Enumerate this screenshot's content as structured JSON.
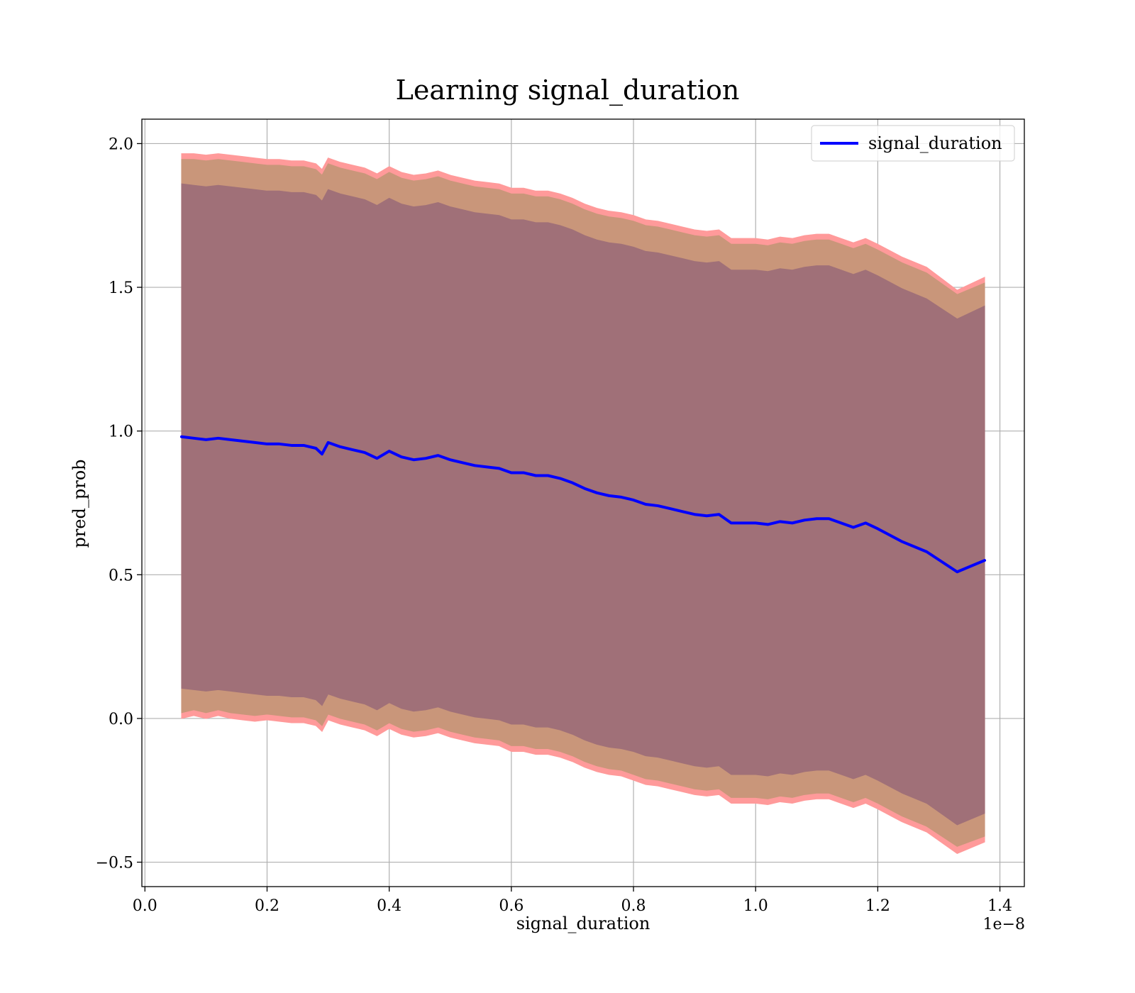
{
  "chart_data": {
    "type": "area",
    "title": "Learning signal_duration",
    "xlabel": "signal_duration",
    "ylabel": "pred_prob",
    "x_offset_label": "1e−8",
    "xlim": [
      -0.005,
      1.44
    ],
    "ylim": [
      -0.585,
      2.085
    ],
    "xticks": [
      0.0,
      0.2,
      0.4,
      0.6,
      0.8,
      1.0,
      1.2,
      1.4
    ],
    "xtick_labels": [
      "0.0",
      "0.2",
      "0.4",
      "0.6",
      "0.8",
      "1.0",
      "1.2",
      "1.4"
    ],
    "yticks": [
      -0.5,
      0.0,
      0.5,
      1.0,
      1.5,
      2.0
    ],
    "ytick_labels": [
      "−0.5",
      "0.0",
      "0.5",
      "1.0",
      "1.5",
      "2.0"
    ],
    "grid": true,
    "legend": {
      "position": "top-right",
      "entries": [
        "signal_duration"
      ]
    },
    "colors": {
      "line": "#0000ff",
      "outer_band": "#ff9a9a",
      "middle_band": "#c9967a",
      "inner_band": "#a07078",
      "grid": "#b0b0b0"
    },
    "x": [
      0.06,
      0.08,
      0.1,
      0.12,
      0.14,
      0.16,
      0.18,
      0.2,
      0.22,
      0.24,
      0.26,
      0.28,
      0.29,
      0.3,
      0.32,
      0.34,
      0.36,
      0.38,
      0.4,
      0.42,
      0.44,
      0.46,
      0.48,
      0.5,
      0.52,
      0.54,
      0.56,
      0.58,
      0.6,
      0.62,
      0.64,
      0.66,
      0.68,
      0.7,
      0.72,
      0.74,
      0.76,
      0.78,
      0.8,
      0.82,
      0.84,
      0.86,
      0.88,
      0.9,
      0.92,
      0.94,
      0.96,
      0.98,
      1.0,
      1.02,
      1.04,
      1.06,
      1.08,
      1.1,
      1.12,
      1.14,
      1.16,
      1.18,
      1.2,
      1.24,
      1.28,
      1.33,
      1.375
    ],
    "series": [
      {
        "name": "signal_duration",
        "values": [
          0.98,
          0.975,
          0.97,
          0.975,
          0.97,
          0.965,
          0.96,
          0.955,
          0.955,
          0.95,
          0.95,
          0.94,
          0.92,
          0.96,
          0.945,
          0.935,
          0.925,
          0.905,
          0.93,
          0.91,
          0.9,
          0.905,
          0.915,
          0.9,
          0.89,
          0.88,
          0.875,
          0.87,
          0.855,
          0.855,
          0.845,
          0.845,
          0.835,
          0.82,
          0.8,
          0.785,
          0.775,
          0.77,
          0.76,
          0.745,
          0.74,
          0.73,
          0.72,
          0.71,
          0.705,
          0.71,
          0.68,
          0.68,
          0.68,
          0.675,
          0.685,
          0.68,
          0.69,
          0.695,
          0.695,
          0.68,
          0.665,
          0.68,
          0.66,
          0.615,
          0.58,
          0.51,
          0.55
        ]
      }
    ],
    "bands": [
      {
        "lower": [
          0.0,
          0.01,
          0.0,
          0.01,
          0.0,
          -0.005,
          -0.01,
          -0.005,
          -0.01,
          -0.015,
          -0.015,
          -0.025,
          -0.045,
          -0.005,
          -0.02,
          -0.03,
          -0.04,
          -0.06,
          -0.035,
          -0.055,
          -0.065,
          -0.06,
          -0.05,
          -0.065,
          -0.075,
          -0.085,
          -0.09,
          -0.095,
          -0.115,
          -0.115,
          -0.125,
          -0.125,
          -0.135,
          -0.15,
          -0.17,
          -0.185,
          -0.195,
          -0.2,
          -0.215,
          -0.23,
          -0.235,
          -0.245,
          -0.255,
          -0.265,
          -0.27,
          -0.265,
          -0.295,
          -0.295,
          -0.295,
          -0.3,
          -0.29,
          -0.295,
          -0.285,
          -0.28,
          -0.28,
          -0.295,
          -0.31,
          -0.295,
          -0.315,
          -0.36,
          -0.395,
          -0.47,
          -0.43
        ],
        "upper": [
          1.965,
          1.965,
          1.96,
          1.965,
          1.96,
          1.955,
          1.95,
          1.945,
          1.945,
          1.94,
          1.94,
          1.93,
          1.91,
          1.95,
          1.935,
          1.925,
          1.915,
          1.895,
          1.92,
          1.9,
          1.89,
          1.895,
          1.905,
          1.89,
          1.88,
          1.87,
          1.865,
          1.86,
          1.845,
          1.845,
          1.835,
          1.835,
          1.825,
          1.81,
          1.79,
          1.775,
          1.765,
          1.76,
          1.75,
          1.735,
          1.73,
          1.72,
          1.71,
          1.7,
          1.695,
          1.7,
          1.67,
          1.67,
          1.67,
          1.665,
          1.675,
          1.67,
          1.68,
          1.685,
          1.685,
          1.67,
          1.655,
          1.67,
          1.65,
          1.605,
          1.57,
          1.49,
          1.535
        ]
      },
      {
        "lower": [
          0.02,
          0.03,
          0.02,
          0.03,
          0.02,
          0.015,
          0.01,
          0.015,
          0.01,
          0.005,
          0.005,
          -0.005,
          -0.025,
          0.015,
          0.0,
          -0.01,
          -0.02,
          -0.04,
          -0.015,
          -0.035,
          -0.045,
          -0.04,
          -0.03,
          -0.045,
          -0.055,
          -0.065,
          -0.07,
          -0.075,
          -0.095,
          -0.095,
          -0.105,
          -0.105,
          -0.115,
          -0.13,
          -0.15,
          -0.165,
          -0.175,
          -0.18,
          -0.195,
          -0.21,
          -0.215,
          -0.225,
          -0.235,
          -0.245,
          -0.25,
          -0.245,
          -0.275,
          -0.275,
          -0.275,
          -0.28,
          -0.27,
          -0.275,
          -0.265,
          -0.26,
          -0.26,
          -0.275,
          -0.29,
          -0.275,
          -0.295,
          -0.34,
          -0.375,
          -0.445,
          -0.41
        ],
        "upper": [
          1.945,
          1.945,
          1.94,
          1.945,
          1.94,
          1.935,
          1.93,
          1.925,
          1.925,
          1.92,
          1.92,
          1.91,
          1.89,
          1.93,
          1.915,
          1.905,
          1.895,
          1.875,
          1.9,
          1.88,
          1.87,
          1.875,
          1.885,
          1.87,
          1.86,
          1.85,
          1.845,
          1.84,
          1.825,
          1.825,
          1.815,
          1.815,
          1.805,
          1.79,
          1.77,
          1.755,
          1.745,
          1.74,
          1.73,
          1.715,
          1.71,
          1.7,
          1.69,
          1.68,
          1.675,
          1.68,
          1.65,
          1.65,
          1.65,
          1.645,
          1.655,
          1.65,
          1.66,
          1.665,
          1.665,
          1.65,
          1.635,
          1.65,
          1.63,
          1.585,
          1.55,
          1.475,
          1.515
        ]
      },
      {
        "lower": [
          0.105,
          0.1,
          0.095,
          0.1,
          0.095,
          0.09,
          0.085,
          0.08,
          0.08,
          0.075,
          0.075,
          0.065,
          0.045,
          0.085,
          0.07,
          0.06,
          0.05,
          0.03,
          0.055,
          0.035,
          0.025,
          0.03,
          0.04,
          0.025,
          0.015,
          0.005,
          0.0,
          -0.005,
          -0.02,
          -0.02,
          -0.03,
          -0.03,
          -0.04,
          -0.055,
          -0.075,
          -0.09,
          -0.1,
          -0.105,
          -0.115,
          -0.13,
          -0.135,
          -0.145,
          -0.155,
          -0.165,
          -0.17,
          -0.165,
          -0.195,
          -0.195,
          -0.195,
          -0.2,
          -0.19,
          -0.195,
          -0.185,
          -0.18,
          -0.18,
          -0.195,
          -0.21,
          -0.195,
          -0.215,
          -0.26,
          -0.295,
          -0.37,
          -0.33
        ],
        "upper": [
          1.86,
          1.855,
          1.85,
          1.855,
          1.85,
          1.845,
          1.84,
          1.835,
          1.835,
          1.83,
          1.83,
          1.82,
          1.8,
          1.84,
          1.825,
          1.815,
          1.805,
          1.785,
          1.81,
          1.79,
          1.78,
          1.785,
          1.795,
          1.78,
          1.77,
          1.76,
          1.755,
          1.75,
          1.735,
          1.735,
          1.725,
          1.725,
          1.715,
          1.7,
          1.68,
          1.665,
          1.655,
          1.65,
          1.64,
          1.625,
          1.62,
          1.61,
          1.6,
          1.59,
          1.585,
          1.59,
          1.56,
          1.56,
          1.56,
          1.555,
          1.565,
          1.56,
          1.57,
          1.575,
          1.575,
          1.56,
          1.545,
          1.56,
          1.54,
          1.495,
          1.46,
          1.39,
          1.435
        ]
      }
    ]
  }
}
